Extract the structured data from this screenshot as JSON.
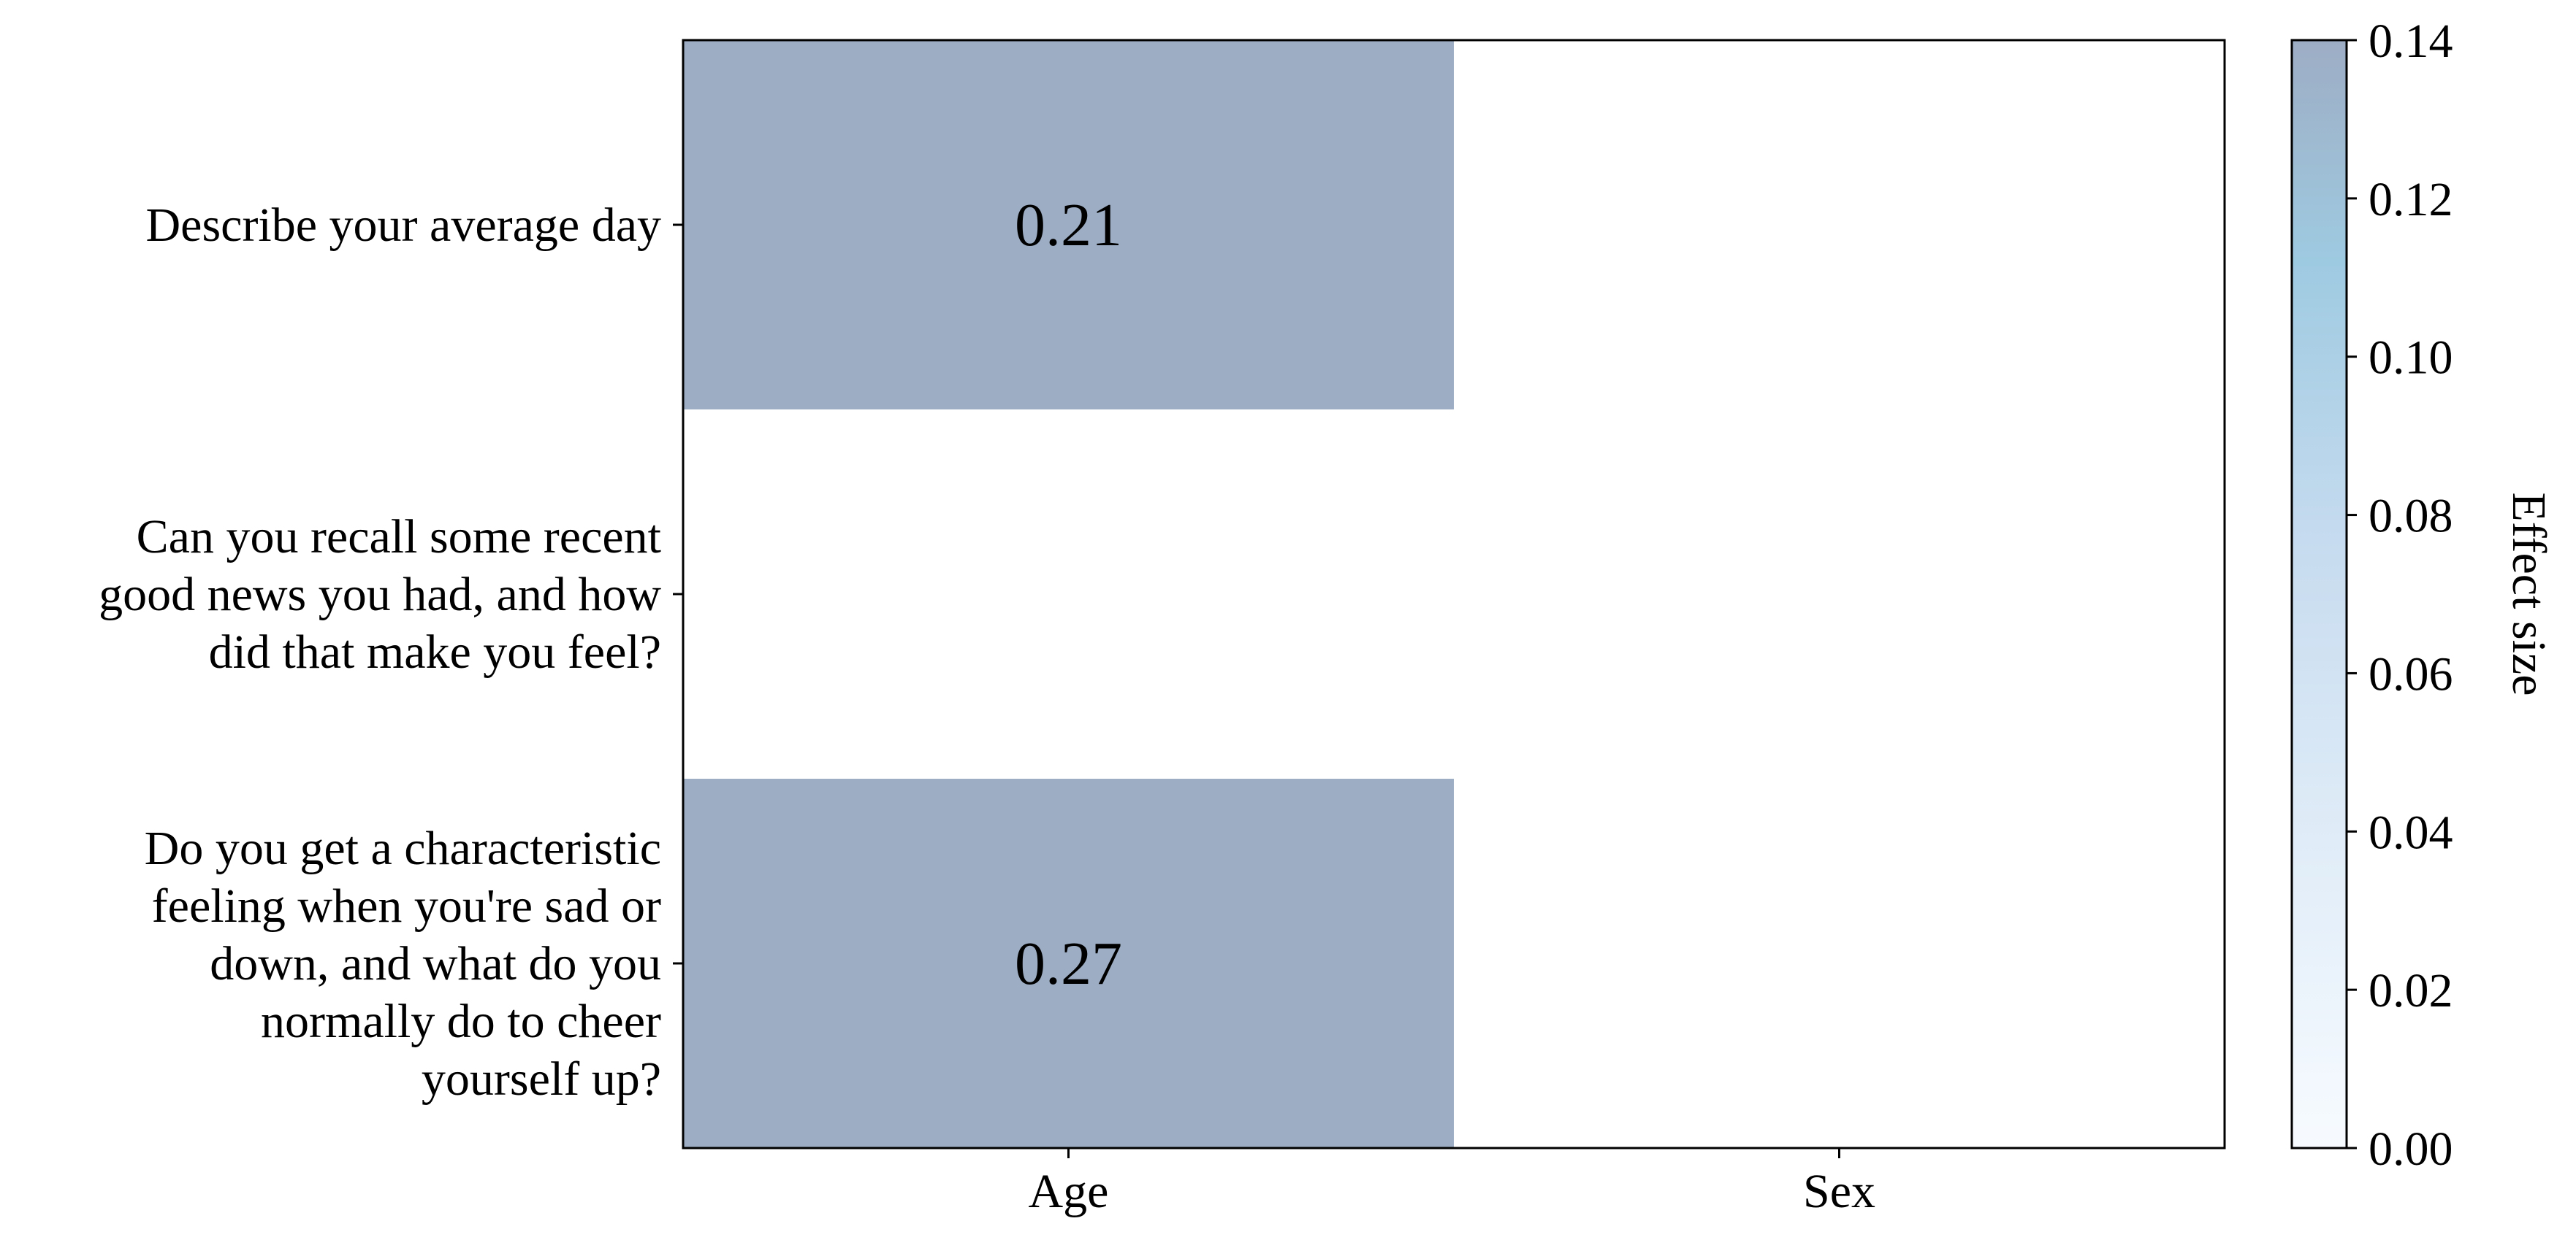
{
  "chart_data": {
    "type": "heatmap",
    "title": "",
    "xlabel": "",
    "ylabel": "",
    "x_categories": [
      "Age",
      "Sex"
    ],
    "y_categories": [
      [
        "Describe your average day"
      ],
      [
        "Can you recall some recent",
        "good news you had, and how",
        "did that make you feel?"
      ],
      [
        "Do you get a characteristic",
        "feeling when you're sad or",
        "down, and what do you",
        "normally do to cheer",
        "yourself up?"
      ]
    ],
    "cells": [
      {
        "row": 0,
        "col": 0,
        "value": 0.21,
        "label": "0.21",
        "color": "#9dadc4"
      },
      {
        "row": 2,
        "col": 0,
        "value": 0.27,
        "label": "0.27",
        "color": "#9dadc4"
      }
    ],
    "colorbar": {
      "label": "Effect size",
      "min": 0.0,
      "max": 0.14,
      "ticks": [
        "0.00",
        "0.02",
        "0.04",
        "0.06",
        "0.08",
        "0.10",
        "0.12",
        "0.14"
      ],
      "colors": [
        "#f7fbff",
        "#deebf7",
        "#c6dbef",
        "#9ecae1",
        "#9dadc4"
      ]
    },
    "grid": false,
    "legend": "right"
  }
}
